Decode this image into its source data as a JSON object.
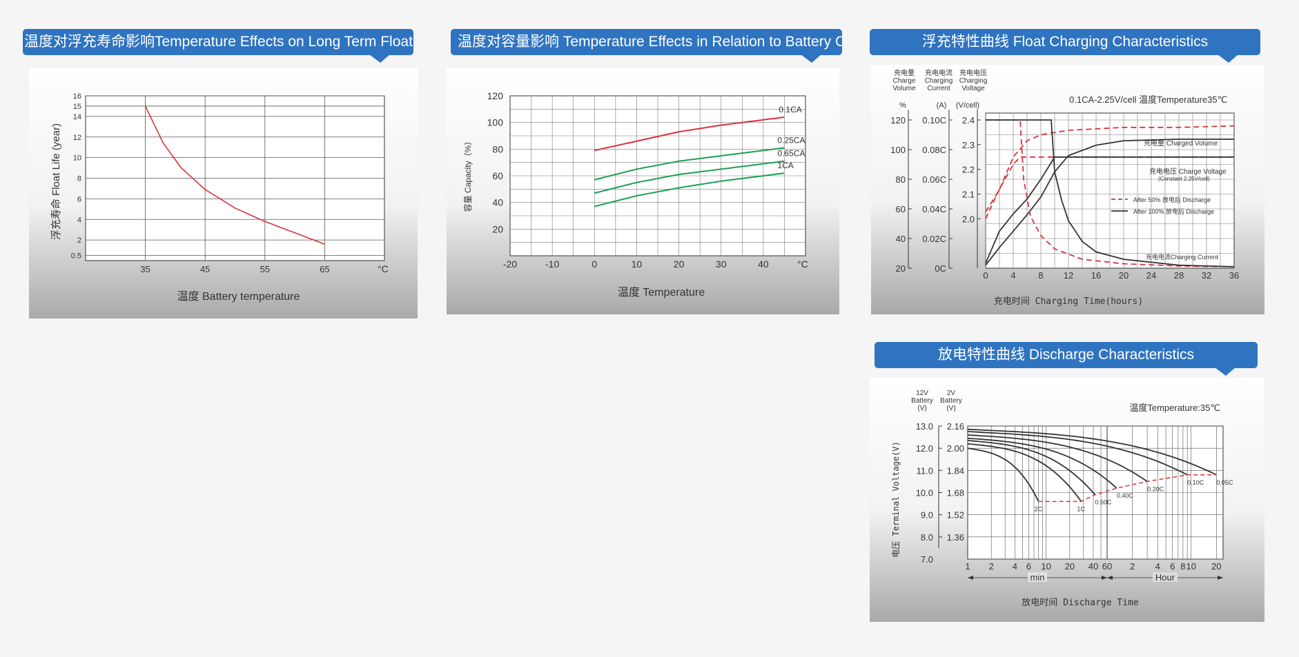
{
  "chart_data": [
    {
      "type": "line",
      "title": "温度对浮充寿命影响Temperature Effects on Long Term Float Life",
      "xlabel": "温度  Battery temperature",
      "ylabel": "浮充寿命  Float Life (year)",
      "x_unit": "°C",
      "xlim": [
        25,
        75
      ],
      "ylim": [
        0,
        16
      ],
      "x_ticks": [
        35,
        45,
        55,
        65
      ],
      "x_tick_labels": [
        "35",
        "45",
        "55",
        "65"
      ],
      "y_ticks": [
        0.5,
        2,
        4,
        6,
        8,
        10,
        12,
        14,
        15,
        16
      ],
      "y_tick_labels": [
        "0.5",
        "2",
        "4",
        "6",
        "8",
        "10",
        "12",
        "14",
        "15",
        "16"
      ],
      "grid": true,
      "series": [
        {
          "x": [
            35,
            38,
            41,
            45,
            50,
            55,
            60,
            65
          ],
          "y": [
            15,
            11.4,
            9.0,
            6.9,
            5.1,
            3.8,
            2.7,
            1.6
          ]
        }
      ]
    },
    {
      "type": "line",
      "title": "温度对容量影响 Temperature Effects in Relation to Battery Capacity",
      "xlabel": "温度  Temperature",
      "ylabel": "容量  Capacity（%）",
      "x_unit": "°C",
      "xlim": [
        -20,
        50
      ],
      "ylim": [
        0,
        120
      ],
      "x_ticks": [
        -20,
        -10,
        0,
        10,
        20,
        30,
        40
      ],
      "x_tick_labels": [
        "-20",
        "-10",
        "0",
        "10",
        "20",
        "30",
        "40"
      ],
      "y_ticks": [
        20,
        40,
        60,
        80,
        100,
        120
      ],
      "y_tick_labels": [
        "20",
        "40",
        "60",
        "80",
        "100",
        "120"
      ],
      "grid": true,
      "series": [
        {
          "name": "0.1CA",
          "x": [
            0,
            10,
            20,
            30,
            45
          ],
          "y": [
            79,
            86,
            93,
            98,
            104
          ],
          "color": "#d9313b"
        },
        {
          "name": "0.25CA",
          "x": [
            0,
            10,
            20,
            30,
            45
          ],
          "y": [
            57,
            65,
            71,
            75,
            81
          ],
          "color": "#1aa052"
        },
        {
          "name": "0.65CA",
          "x": [
            0,
            10,
            20,
            30,
            45
          ],
          "y": [
            47,
            55,
            61,
            65,
            71
          ],
          "color": "#1aa052"
        },
        {
          "name": "1CA",
          "x": [
            0,
            10,
            20,
            30,
            45
          ],
          "y": [
            37,
            45,
            51,
            56,
            62
          ],
          "color": "#1aa052"
        }
      ]
    },
    {
      "type": "line",
      "title": "浮充特性曲线 Float Charging Characteristics",
      "condition": "0.1CA-2.25V/cell   温度Temperature35℃",
      "xlabel": "充电时间 Charging Time(hours)",
      "xlim": [
        0,
        36
      ],
      "x_ticks": [
        0,
        4,
        8,
        12,
        16,
        20,
        24,
        28,
        32,
        36
      ],
      "x_tick_labels": [
        "0",
        "4",
        "8",
        "12",
        "16",
        "20",
        "24",
        "28",
        "32",
        "36"
      ],
      "grid": true,
      "axes": [
        {
          "title_lines": [
            "充电量",
            "Charge",
            "Volume"
          ],
          "unit": "%",
          "range": [
            20,
            120
          ],
          "tick_labels": [
            "120",
            "100",
            "80",
            "60",
            "40",
            "20"
          ]
        },
        {
          "title_lines": [
            "充电电流",
            "Charging",
            "Current"
          ],
          "unit": "(A)",
          "range": [
            0,
            0.1
          ],
          "tick_labels": [
            "0.10C",
            "0.08C",
            "0.06C",
            "0.04C",
            "0.02C",
            "0C"
          ]
        },
        {
          "title_lines": [
            "充电电压",
            "Charging",
            "Voltage"
          ],
          "unit": "(V/cell)",
          "range": [
            1.8,
            2.4
          ],
          "tick_labels": [
            "2.4",
            "2.3",
            "2.2",
            "2.1",
            "2.0"
          ]
        }
      ],
      "curve_labels": {
        "charged_volume": "充电量 Charged Volume",
        "charge_voltage": "充电电压 Charge Voltage",
        "charge_voltage_note": "(Constant 2.25V/cell)",
        "charging_current": "充电电流Charging Current"
      },
      "legend": [
        {
          "name": "After 50% 放电后 Discharge",
          "style": "dashed",
          "color": "#d9313b"
        },
        {
          "name": "After 100% 放电后 Discharge",
          "style": "solid",
          "color": "#333333"
        }
      ],
      "series": [
        {
          "name": "charged volume (after 50%)",
          "style": "dashed",
          "axis": 0,
          "x": [
            0,
            2,
            4,
            6,
            8,
            12,
            16,
            20,
            28,
            36
          ],
          "y": [
            58,
            73,
            95,
            106,
            110,
            113,
            114,
            115,
            115,
            116
          ]
        },
        {
          "name": "charged volume (after 100%)",
          "style": "solid",
          "axis": 0,
          "x": [
            0,
            2,
            4,
            6,
            8,
            10,
            12,
            16,
            20,
            28,
            36
          ],
          "y": [
            22,
            34,
            45,
            56,
            68,
            85,
            96,
            103,
            106,
            107,
            107
          ]
        },
        {
          "name": "charge voltage (after 50%)",
          "style": "dashed",
          "axis": 2,
          "x": [
            0,
            2,
            4,
            5,
            8,
            36
          ],
          "y": [
            2.0,
            2.12,
            2.22,
            2.25,
            2.25,
            2.25
          ]
        },
        {
          "name": "charge voltage (after 100%)",
          "style": "solid",
          "axis": 2,
          "x": [
            0,
            2,
            4,
            6,
            8,
            10,
            36
          ],
          "y": [
            1.82,
            1.95,
            2.02,
            2.08,
            2.16,
            2.25,
            2.25
          ]
        },
        {
          "name": "charging current (after 50%)",
          "style": "dashed",
          "axis": 1,
          "x": [
            0,
            5,
            5.5,
            6.5,
            8,
            10,
            14,
            20,
            28,
            36
          ],
          "y": [
            0.1,
            0.1,
            0.06,
            0.035,
            0.022,
            0.013,
            0.006,
            0.003,
            0.0015,
            0.001
          ]
        },
        {
          "name": "charging current (after 100%)",
          "style": "solid",
          "axis": 1,
          "x": [
            0,
            9.5,
            10,
            11,
            12,
            14,
            16,
            20,
            28,
            36
          ],
          "y": [
            0.1,
            0.1,
            0.065,
            0.046,
            0.032,
            0.018,
            0.011,
            0.006,
            0.002,
            0.001
          ]
        }
      ]
    },
    {
      "type": "line",
      "title": "放电特性曲线 Discharge Characteristics",
      "condition": "温度Temperature:35℃",
      "xlabel": "放电时间 Discharge Time",
      "ylabel": "电压 Terminal Voltage(V)",
      "axis_titles": [
        [
          "12V",
          "Battery",
          "(V)"
        ],
        [
          "2V",
          "Battery",
          "(V)"
        ]
      ],
      "x_scale": "log",
      "x_ticks_min": [
        1,
        2,
        4,
        6,
        10,
        20,
        40,
        60
      ],
      "x_tick_labels_min": [
        "1",
        "2",
        "4",
        "6",
        "10",
        "20",
        "40",
        "60"
      ],
      "x_ticks_hour": [
        2,
        4,
        6,
        8,
        10,
        20
      ],
      "x_tick_labels_hour": [
        "2",
        "4",
        "6",
        "8",
        "10",
        "20"
      ],
      "x_unit_min": "min",
      "x_unit_hour": "Hour",
      "y_tick_labels_12v": [
        "13.0",
        "12.0",
        "11.0",
        "10.0",
        "9.0",
        "8.0",
        "7.0"
      ],
      "y_tick_labels_2v": [
        "2.16",
        "2.00",
        "1.84",
        "1.68",
        "1.52",
        "1.36"
      ],
      "y_ticks_12v": [
        13.0,
        12.0,
        11.0,
        10.0,
        9.0,
        8.0,
        7.0
      ],
      "ylim": [
        7.0,
        13.0
      ],
      "grid": true,
      "series": [
        {
          "name": "2C",
          "end_minutes": 8,
          "end_voltage": 9.6
        },
        {
          "name": "1C",
          "end_minutes": 28,
          "end_voltage": 9.6
        },
        {
          "name": "0.60C",
          "end_minutes": 42,
          "end_voltage": 9.9
        },
        {
          "name": "0.40C",
          "end_minutes": 78,
          "end_voltage": 10.2
        },
        {
          "name": "0.20C",
          "end_minutes": 180,
          "end_voltage": 10.5
        },
        {
          "name": "0.10C",
          "end_minutes": 540,
          "end_voltage": 10.8
        },
        {
          "name": "0.05C",
          "end_minutes": 1200,
          "end_voltage": 10.8
        }
      ],
      "cutoff_line": {
        "style": "dashed",
        "color": "#d9313b"
      }
    }
  ]
}
